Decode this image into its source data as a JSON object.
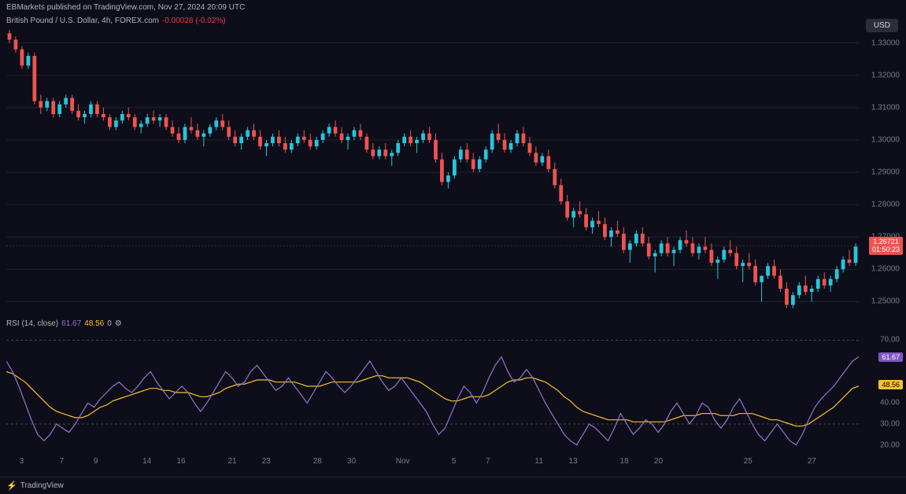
{
  "header": {
    "attribution": "EBMarkets published on TradingView.com, Nov 27, 2024 20:09 UTC"
  },
  "legend": {
    "symbol": "British Pound / U.S. Dollar, 4h, FOREX.com",
    "change": "-0.00028 (-0.02%)",
    "currency_button": "USD"
  },
  "price_chart": {
    "type": "candlestick",
    "ylim": [
      1.245,
      1.335
    ],
    "yticks": [
      1.25,
      1.26,
      1.27,
      1.28,
      1.29,
      1.3,
      1.31,
      1.32,
      1.33
    ],
    "ytick_labels": [
      "1.25000",
      "1.26000",
      "1.27000",
      "1.28000",
      "1.29000",
      "1.30000",
      "1.31000",
      "1.32000",
      "1.33000"
    ],
    "current_price": 1.26721,
    "current_price_label": "1.26721",
    "countdown": "01:50:23",
    "up_color": "#26c6da",
    "down_color": "#ef5350",
    "background": "#0d0e1a",
    "grid_color": "#1e222d",
    "price_badge_bg": "#ef5350",
    "price_badge_color": "#ffffff",
    "candles": [
      {
        "o": 1.333,
        "h": 1.334,
        "l": 1.33,
        "c": 1.331
      },
      {
        "o": 1.331,
        "h": 1.332,
        "l": 1.327,
        "c": 1.328
      },
      {
        "o": 1.328,
        "h": 1.329,
        "l": 1.322,
        "c": 1.323
      },
      {
        "o": 1.323,
        "h": 1.327,
        "l": 1.322,
        "c": 1.326
      },
      {
        "o": 1.326,
        "h": 1.327,
        "l": 1.311,
        "c": 1.312
      },
      {
        "o": 1.312,
        "h": 1.314,
        "l": 1.308,
        "c": 1.31
      },
      {
        "o": 1.31,
        "h": 1.313,
        "l": 1.309,
        "c": 1.312
      },
      {
        "o": 1.312,
        "h": 1.313,
        "l": 1.307,
        "c": 1.308
      },
      {
        "o": 1.308,
        "h": 1.312,
        "l": 1.307,
        "c": 1.311
      },
      {
        "o": 1.311,
        "h": 1.314,
        "l": 1.31,
        "c": 1.313
      },
      {
        "o": 1.313,
        "h": 1.314,
        "l": 1.308,
        "c": 1.309
      },
      {
        "o": 1.309,
        "h": 1.311,
        "l": 1.306,
        "c": 1.307
      },
      {
        "o": 1.307,
        "h": 1.309,
        "l": 1.305,
        "c": 1.308
      },
      {
        "o": 1.308,
        "h": 1.312,
        "l": 1.307,
        "c": 1.311
      },
      {
        "o": 1.311,
        "h": 1.312,
        "l": 1.307,
        "c": 1.308
      },
      {
        "o": 1.308,
        "h": 1.31,
        "l": 1.306,
        "c": 1.307
      },
      {
        "o": 1.307,
        "h": 1.308,
        "l": 1.303,
        "c": 1.304
      },
      {
        "o": 1.304,
        "h": 1.307,
        "l": 1.303,
        "c": 1.306
      },
      {
        "o": 1.306,
        "h": 1.309,
        "l": 1.305,
        "c": 1.308
      },
      {
        "o": 1.308,
        "h": 1.31,
        "l": 1.306,
        "c": 1.307
      },
      {
        "o": 1.307,
        "h": 1.308,
        "l": 1.303,
        "c": 1.304
      },
      {
        "o": 1.304,
        "h": 1.306,
        "l": 1.302,
        "c": 1.305
      },
      {
        "o": 1.305,
        "h": 1.308,
        "l": 1.304,
        "c": 1.307
      },
      {
        "o": 1.307,
        "h": 1.309,
        "l": 1.305,
        "c": 1.306
      },
      {
        "o": 1.306,
        "h": 1.308,
        "l": 1.304,
        "c": 1.307
      },
      {
        "o": 1.307,
        "h": 1.308,
        "l": 1.303,
        "c": 1.304
      },
      {
        "o": 1.304,
        "h": 1.306,
        "l": 1.301,
        "c": 1.302
      },
      {
        "o": 1.302,
        "h": 1.304,
        "l": 1.299,
        "c": 1.3
      },
      {
        "o": 1.3,
        "h": 1.305,
        "l": 1.299,
        "c": 1.304
      },
      {
        "o": 1.304,
        "h": 1.307,
        "l": 1.302,
        "c": 1.303
      },
      {
        "o": 1.303,
        "h": 1.305,
        "l": 1.3,
        "c": 1.301
      },
      {
        "o": 1.301,
        "h": 1.303,
        "l": 1.298,
        "c": 1.302
      },
      {
        "o": 1.302,
        "h": 1.305,
        "l": 1.301,
        "c": 1.304
      },
      {
        "o": 1.304,
        "h": 1.307,
        "l": 1.303,
        "c": 1.306
      },
      {
        "o": 1.306,
        "h": 1.308,
        "l": 1.303,
        "c": 1.304
      },
      {
        "o": 1.304,
        "h": 1.306,
        "l": 1.3,
        "c": 1.301
      },
      {
        "o": 1.301,
        "h": 1.303,
        "l": 1.298,
        "c": 1.299
      },
      {
        "o": 1.299,
        "h": 1.302,
        "l": 1.297,
        "c": 1.301
      },
      {
        "o": 1.301,
        "h": 1.304,
        "l": 1.3,
        "c": 1.303
      },
      {
        "o": 1.303,
        "h": 1.305,
        "l": 1.3,
        "c": 1.301
      },
      {
        "o": 1.301,
        "h": 1.303,
        "l": 1.297,
        "c": 1.298
      },
      {
        "o": 1.298,
        "h": 1.3,
        "l": 1.295,
        "c": 1.299
      },
      {
        "o": 1.299,
        "h": 1.302,
        "l": 1.298,
        "c": 1.301
      },
      {
        "o": 1.301,
        "h": 1.303,
        "l": 1.298,
        "c": 1.299
      },
      {
        "o": 1.299,
        "h": 1.301,
        "l": 1.296,
        "c": 1.297
      },
      {
        "o": 1.297,
        "h": 1.3,
        "l": 1.296,
        "c": 1.299
      },
      {
        "o": 1.299,
        "h": 1.302,
        "l": 1.298,
        "c": 1.301
      },
      {
        "o": 1.301,
        "h": 1.303,
        "l": 1.299,
        "c": 1.3
      },
      {
        "o": 1.3,
        "h": 1.302,
        "l": 1.297,
        "c": 1.298
      },
      {
        "o": 1.298,
        "h": 1.301,
        "l": 1.297,
        "c": 1.3
      },
      {
        "o": 1.3,
        "h": 1.303,
        "l": 1.299,
        "c": 1.302
      },
      {
        "o": 1.302,
        "h": 1.305,
        "l": 1.301,
        "c": 1.304
      },
      {
        "o": 1.304,
        "h": 1.306,
        "l": 1.301,
        "c": 1.302
      },
      {
        "o": 1.302,
        "h": 1.304,
        "l": 1.299,
        "c": 1.3
      },
      {
        "o": 1.3,
        "h": 1.302,
        "l": 1.297,
        "c": 1.301
      },
      {
        "o": 1.301,
        "h": 1.304,
        "l": 1.3,
        "c": 1.303
      },
      {
        "o": 1.303,
        "h": 1.305,
        "l": 1.3,
        "c": 1.301
      },
      {
        "o": 1.301,
        "h": 1.302,
        "l": 1.296,
        "c": 1.297
      },
      {
        "o": 1.297,
        "h": 1.299,
        "l": 1.294,
        "c": 1.295
      },
      {
        "o": 1.295,
        "h": 1.298,
        "l": 1.294,
        "c": 1.297
      },
      {
        "o": 1.297,
        "h": 1.299,
        "l": 1.294,
        "c": 1.295
      },
      {
        "o": 1.295,
        "h": 1.297,
        "l": 1.292,
        "c": 1.296
      },
      {
        "o": 1.296,
        "h": 1.3,
        "l": 1.295,
        "c": 1.299
      },
      {
        "o": 1.299,
        "h": 1.302,
        "l": 1.298,
        "c": 1.301
      },
      {
        "o": 1.301,
        "h": 1.303,
        "l": 1.298,
        "c": 1.299
      },
      {
        "o": 1.299,
        "h": 1.301,
        "l": 1.296,
        "c": 1.3
      },
      {
        "o": 1.3,
        "h": 1.303,
        "l": 1.299,
        "c": 1.302
      },
      {
        "o": 1.302,
        "h": 1.304,
        "l": 1.299,
        "c": 1.3
      },
      {
        "o": 1.3,
        "h": 1.302,
        "l": 1.293,
        "c": 1.294
      },
      {
        "o": 1.294,
        "h": 1.296,
        "l": 1.286,
        "c": 1.287
      },
      {
        "o": 1.287,
        "h": 1.29,
        "l": 1.285,
        "c": 1.289
      },
      {
        "o": 1.289,
        "h": 1.295,
        "l": 1.288,
        "c": 1.294
      },
      {
        "o": 1.294,
        "h": 1.298,
        "l": 1.293,
        "c": 1.297
      },
      {
        "o": 1.297,
        "h": 1.299,
        "l": 1.293,
        "c": 1.294
      },
      {
        "o": 1.294,
        "h": 1.296,
        "l": 1.29,
        "c": 1.291
      },
      {
        "o": 1.291,
        "h": 1.295,
        "l": 1.29,
        "c": 1.294
      },
      {
        "o": 1.294,
        "h": 1.298,
        "l": 1.293,
        "c": 1.297
      },
      {
        "o": 1.297,
        "h": 1.303,
        "l": 1.296,
        "c": 1.302
      },
      {
        "o": 1.302,
        "h": 1.305,
        "l": 1.299,
        "c": 1.3
      },
      {
        "o": 1.3,
        "h": 1.302,
        "l": 1.296,
        "c": 1.297
      },
      {
        "o": 1.297,
        "h": 1.3,
        "l": 1.296,
        "c": 1.299
      },
      {
        "o": 1.299,
        "h": 1.303,
        "l": 1.298,
        "c": 1.302
      },
      {
        "o": 1.302,
        "h": 1.304,
        "l": 1.298,
        "c": 1.299
      },
      {
        "o": 1.299,
        "h": 1.301,
        "l": 1.295,
        "c": 1.296
      },
      {
        "o": 1.296,
        "h": 1.298,
        "l": 1.292,
        "c": 1.293
      },
      {
        "o": 1.293,
        "h": 1.296,
        "l": 1.292,
        "c": 1.295
      },
      {
        "o": 1.295,
        "h": 1.297,
        "l": 1.29,
        "c": 1.291
      },
      {
        "o": 1.291,
        "h": 1.293,
        "l": 1.285,
        "c": 1.286
      },
      {
        "o": 1.286,
        "h": 1.288,
        "l": 1.28,
        "c": 1.281
      },
      {
        "o": 1.281,
        "h": 1.283,
        "l": 1.275,
        "c": 1.276
      },
      {
        "o": 1.276,
        "h": 1.279,
        "l": 1.273,
        "c": 1.278
      },
      {
        "o": 1.278,
        "h": 1.281,
        "l": 1.276,
        "c": 1.277
      },
      {
        "o": 1.277,
        "h": 1.279,
        "l": 1.272,
        "c": 1.273
      },
      {
        "o": 1.273,
        "h": 1.276,
        "l": 1.271,
        "c": 1.275
      },
      {
        "o": 1.275,
        "h": 1.278,
        "l": 1.273,
        "c": 1.274
      },
      {
        "o": 1.274,
        "h": 1.276,
        "l": 1.269,
        "c": 1.27
      },
      {
        "o": 1.27,
        "h": 1.273,
        "l": 1.267,
        "c": 1.272
      },
      {
        "o": 1.272,
        "h": 1.275,
        "l": 1.27,
        "c": 1.271
      },
      {
        "o": 1.271,
        "h": 1.273,
        "l": 1.265,
        "c": 1.266
      },
      {
        "o": 1.266,
        "h": 1.269,
        "l": 1.262,
        "c": 1.268
      },
      {
        "o": 1.268,
        "h": 1.272,
        "l": 1.267,
        "c": 1.271
      },
      {
        "o": 1.271,
        "h": 1.273,
        "l": 1.267,
        "c": 1.268
      },
      {
        "o": 1.268,
        "h": 1.27,
        "l": 1.263,
        "c": 1.264
      },
      {
        "o": 1.264,
        "h": 1.266,
        "l": 1.259,
        "c": 1.265
      },
      {
        "o": 1.265,
        "h": 1.269,
        "l": 1.264,
        "c": 1.268
      },
      {
        "o": 1.268,
        "h": 1.27,
        "l": 1.264,
        "c": 1.265
      },
      {
        "o": 1.265,
        "h": 1.267,
        "l": 1.261,
        "c": 1.266
      },
      {
        "o": 1.266,
        "h": 1.27,
        "l": 1.265,
        "c": 1.269
      },
      {
        "o": 1.269,
        "h": 1.272,
        "l": 1.267,
        "c": 1.268
      },
      {
        "o": 1.268,
        "h": 1.27,
        "l": 1.264,
        "c": 1.265
      },
      {
        "o": 1.265,
        "h": 1.268,
        "l": 1.263,
        "c": 1.267
      },
      {
        "o": 1.267,
        "h": 1.27,
        "l": 1.265,
        "c": 1.266
      },
      {
        "o": 1.266,
        "h": 1.268,
        "l": 1.261,
        "c": 1.262
      },
      {
        "o": 1.262,
        "h": 1.264,
        "l": 1.257,
        "c": 1.263
      },
      {
        "o": 1.263,
        "h": 1.267,
        "l": 1.262,
        "c": 1.266
      },
      {
        "o": 1.266,
        "h": 1.269,
        "l": 1.264,
        "c": 1.265
      },
      {
        "o": 1.265,
        "h": 1.267,
        "l": 1.26,
        "c": 1.261
      },
      {
        "o": 1.261,
        "h": 1.263,
        "l": 1.256,
        "c": 1.262
      },
      {
        "o": 1.262,
        "h": 1.265,
        "l": 1.26,
        "c": 1.261
      },
      {
        "o": 1.261,
        "h": 1.263,
        "l": 1.255,
        "c": 1.256
      },
      {
        "o": 1.256,
        "h": 1.258,
        "l": 1.25,
        "c": 1.258
      },
      {
        "o": 1.258,
        "h": 1.262,
        "l": 1.257,
        "c": 1.261
      },
      {
        "o": 1.261,
        "h": 1.263,
        "l": 1.257,
        "c": 1.258
      },
      {
        "o": 1.258,
        "h": 1.26,
        "l": 1.253,
        "c": 1.254
      },
      {
        "o": 1.254,
        "h": 1.256,
        "l": 1.248,
        "c": 1.249
      },
      {
        "o": 1.249,
        "h": 1.253,
        "l": 1.248,
        "c": 1.252
      },
      {
        "o": 1.252,
        "h": 1.256,
        "l": 1.251,
        "c": 1.255
      },
      {
        "o": 1.255,
        "h": 1.258,
        "l": 1.252,
        "c": 1.253
      },
      {
        "o": 1.253,
        "h": 1.255,
        "l": 1.25,
        "c": 1.254
      },
      {
        "o": 1.254,
        "h": 1.258,
        "l": 1.253,
        "c": 1.257
      },
      {
        "o": 1.257,
        "h": 1.259,
        "l": 1.254,
        "c": 1.255
      },
      {
        "o": 1.255,
        "h": 1.258,
        "l": 1.253,
        "c": 1.257
      },
      {
        "o": 1.257,
        "h": 1.261,
        "l": 1.256,
        "c": 1.26
      },
      {
        "o": 1.26,
        "h": 1.264,
        "l": 1.259,
        "c": 1.263
      },
      {
        "o": 1.263,
        "h": 1.266,
        "l": 1.261,
        "c": 1.262
      },
      {
        "o": 1.262,
        "h": 1.268,
        "l": 1.261,
        "c": 1.267
      }
    ]
  },
  "rsi": {
    "label": "RSI (14, close)",
    "value_purple": "61.67",
    "value_yellow": "48.56",
    "value_zero": "0",
    "settings_icon": "⚙",
    "ylim": [
      15,
      75
    ],
    "yticks": [
      20,
      30,
      40,
      70
    ],
    "ytick_labels": [
      "20.00",
      "30.00",
      "40.00",
      "70.00"
    ],
    "bands": [
      30,
      70
    ],
    "purple_color": "#9575cd",
    "yellow_color": "#fbc02d",
    "purple_badge_bg": "#7e57c2",
    "yellow_badge_bg": "#fbc02d",
    "purple_badge_color": "#ffffff",
    "yellow_badge_color": "#000000",
    "purple_line": [
      60,
      55,
      48,
      40,
      32,
      25,
      22,
      25,
      30,
      28,
      26,
      30,
      35,
      40,
      38,
      42,
      45,
      48,
      50,
      47,
      45,
      48,
      52,
      55,
      50,
      46,
      42,
      45,
      48,
      45,
      40,
      36,
      40,
      45,
      50,
      55,
      52,
      48,
      50,
      55,
      58,
      54,
      50,
      46,
      48,
      52,
      48,
      44,
      40,
      45,
      50,
      55,
      52,
      48,
      45,
      48,
      52,
      56,
      60,
      55,
      50,
      46,
      48,
      52,
      48,
      44,
      40,
      36,
      30,
      25,
      28,
      35,
      42,
      48,
      45,
      40,
      45,
      52,
      58,
      62,
      55,
      50,
      52,
      56,
      52,
      46,
      40,
      35,
      30,
      25,
      22,
      20,
      25,
      30,
      28,
      25,
      22,
      28,
      35,
      30,
      25,
      28,
      32,
      30,
      26,
      30,
      36,
      40,
      35,
      30,
      34,
      40,
      38,
      32,
      28,
      32,
      38,
      42,
      36,
      30,
      25,
      22,
      26,
      30,
      26,
      22,
      20,
      25,
      32,
      38,
      42,
      45,
      48,
      52,
      56,
      60,
      62
    ],
    "yellow_line": [
      55,
      54,
      52,
      50,
      47,
      44,
      41,
      38,
      36,
      35,
      34,
      33,
      33,
      34,
      36,
      38,
      39,
      41,
      42,
      43,
      44,
      45,
      46,
      47,
      47,
      46,
      46,
      45,
      45,
      45,
      44,
      43,
      43,
      44,
      45,
      47,
      48,
      49,
      49,
      50,
      51,
      51,
      51,
      50,
      50,
      50,
      50,
      49,
      48,
      48,
      48,
      49,
      50,
      50,
      50,
      50,
      50,
      51,
      52,
      53,
      53,
      52,
      52,
      52,
      52,
      51,
      50,
      48,
      46,
      44,
      42,
      41,
      41,
      42,
      43,
      43,
      43,
      44,
      46,
      48,
      50,
      51,
      51,
      52,
      52,
      51,
      50,
      48,
      46,
      43,
      41,
      38,
      36,
      35,
      34,
      33,
      32,
      32,
      32,
      32,
      31,
      31,
      31,
      31,
      31,
      31,
      32,
      33,
      34,
      34,
      34,
      35,
      35,
      35,
      34,
      34,
      34,
      35,
      35,
      35,
      34,
      33,
      32,
      32,
      31,
      30,
      29,
      29,
      30,
      32,
      34,
      36,
      38,
      41,
      44,
      47,
      48
    ]
  },
  "x_axis": {
    "ticks": [
      "3",
      "7",
      "9",
      "14",
      "16",
      "21",
      "23",
      "28",
      "30",
      "Nov",
      "5",
      "7",
      "11",
      "13",
      "18",
      "20",
      "25",
      "27"
    ],
    "tick_positions": [
      0.018,
      0.065,
      0.105,
      0.165,
      0.205,
      0.265,
      0.305,
      0.365,
      0.405,
      0.465,
      0.525,
      0.565,
      0.625,
      0.665,
      0.725,
      0.765,
      0.87,
      0.945
    ]
  },
  "footer": {
    "logo": "⚡",
    "brand": "TradingView"
  }
}
